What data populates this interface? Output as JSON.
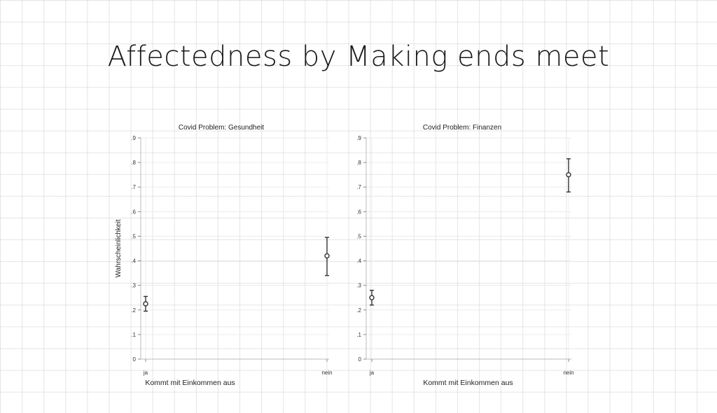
{
  "slide": {
    "title": "Affectedness by Making ends meet"
  },
  "chart_data": [
    {
      "type": "scatter",
      "title": "Covid Problem: Gesundheit",
      "xlabel": "Kommt mit Einkommen aus",
      "ylabel": "Wahrscheinlichkeit",
      "categories": [
        "ja",
        "nein"
      ],
      "values": [
        0.225,
        0.42
      ],
      "ci_low": [
        0.195,
        0.34
      ],
      "ci_high": [
        0.255,
        0.495
      ],
      "ylim": [
        0,
        0.9
      ],
      "yticks": [
        0,
        0.1,
        0.2,
        0.3,
        0.4,
        0.5,
        0.6,
        0.7,
        0.8,
        0.9
      ],
      "ytick_labels": [
        "0",
        ".1",
        ".2",
        ".3",
        ".4",
        ".5",
        ".6",
        ".7",
        ".8",
        ".9"
      ],
      "grid": true
    },
    {
      "type": "scatter",
      "title": "Covid Problem: Finanzen",
      "xlabel": "Kommt mit Einkommen aus",
      "ylabel": "",
      "categories": [
        "ja",
        "nein"
      ],
      "values": [
        0.25,
        0.75
      ],
      "ci_low": [
        0.22,
        0.68
      ],
      "ci_high": [
        0.28,
        0.815
      ],
      "ylim": [
        0,
        0.9
      ],
      "yticks": [
        0,
        0.1,
        0.2,
        0.3,
        0.4,
        0.5,
        0.6,
        0.7,
        0.8,
        0.9
      ],
      "ytick_labels": [
        "0",
        ".1",
        ".2",
        ".3",
        ".4",
        ".5",
        ".6",
        ".7",
        ".8",
        ".9"
      ],
      "grid": true
    }
  ]
}
